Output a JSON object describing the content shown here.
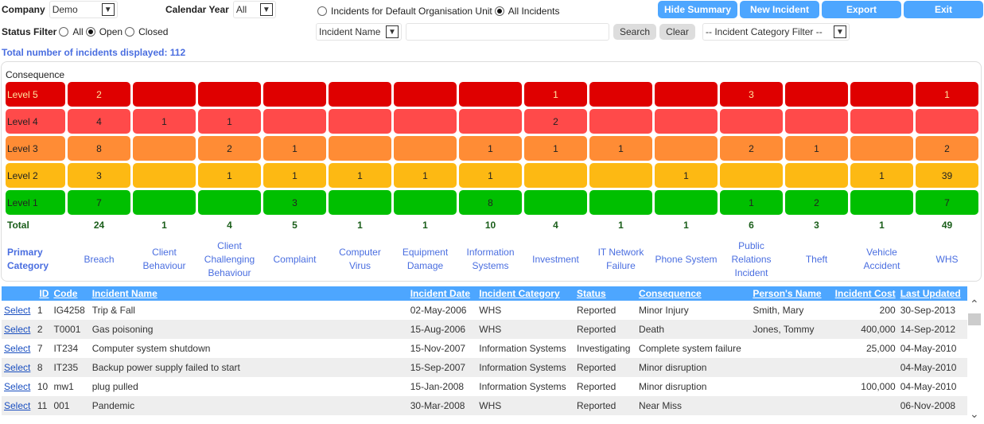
{
  "filters": {
    "company_label": "Company",
    "company_value": "Demo",
    "year_label": "Calendar Year",
    "year_value": "All",
    "status_label": "Status Filter",
    "status_options": [
      "All",
      "Open",
      "Closed"
    ],
    "status_selected": "Open",
    "scope_options": [
      "Incidents for Default Organisation Unit",
      "All Incidents"
    ],
    "scope_selected": "All Incidents",
    "search_field": "Incident Name",
    "search_value": "",
    "search_label": "Search",
    "clear_label": "Clear",
    "category_filter": "-- Incident Category Filter --",
    "total_text": "Total number of incidents displayed: 112"
  },
  "buttons": {
    "hide_summary": "Hide Summary",
    "new_incident": "New Incident",
    "export": "Export",
    "exit": "Exit"
  },
  "matrix": {
    "consequence_label": "Consequence",
    "total_label": "Total",
    "category_label": "Primary Category",
    "categories": [
      "Breach",
      "Client Behaviour",
      "Client Challenging Behaviour",
      "Complaint",
      "Computer Virus",
      "Equipment Damage",
      "Information Systems",
      "Investment",
      "IT Network Failure",
      "Phone System",
      "Public Relations Incident",
      "Theft",
      "Vehicle Accident",
      "WHS"
    ],
    "levels": [
      {
        "label": "Level 5",
        "color": "#df0000",
        "text_color": "#ffe4a0",
        "values": [
          2,
          null,
          null,
          null,
          null,
          null,
          null,
          1,
          null,
          null,
          3,
          null,
          null,
          1
        ]
      },
      {
        "label": "Level 4",
        "color": "#ff4a4a",
        "text_color": "#222",
        "values": [
          4,
          1,
          1,
          null,
          null,
          null,
          null,
          2,
          null,
          null,
          null,
          null,
          null,
          null
        ]
      },
      {
        "label": "Level 3",
        "color": "#ff8c35",
        "text_color": "#222",
        "values": [
          8,
          null,
          2,
          1,
          null,
          null,
          1,
          1,
          1,
          null,
          2,
          1,
          null,
          2
        ]
      },
      {
        "label": "Level 2",
        "color": "#fdb913",
        "text_color": "#222",
        "values": [
          3,
          null,
          1,
          1,
          1,
          1,
          1,
          null,
          null,
          1,
          null,
          null,
          1,
          39
        ]
      },
      {
        "label": "Level 1",
        "color": "#00bf00",
        "text_color": "#222",
        "values": [
          7,
          null,
          null,
          3,
          null,
          null,
          8,
          null,
          null,
          null,
          1,
          2,
          null,
          7
        ]
      }
    ],
    "totals": [
      24,
      1,
      4,
      5,
      1,
      1,
      10,
      4,
      1,
      1,
      6,
      3,
      1,
      49
    ]
  },
  "grid": {
    "select_label": "Select",
    "headers": [
      "",
      "ID",
      "Code",
      "Incident Name",
      "Incident Date",
      "Incident Category",
      "Status",
      "Consequence",
      "Person's Name",
      "Incident Cost",
      "Last Updated"
    ],
    "rows": [
      [
        "1",
        "IG4258",
        "Trip & Fall",
        "02-May-2006",
        "WHS",
        "Reported",
        "Minor Injury",
        "Smith, Mary",
        "200",
        "30-Sep-2013"
      ],
      [
        "2",
        "T0001",
        "Gas poisoning",
        "15-Aug-2006",
        "WHS",
        "Reported",
        "Death",
        "Jones, Tommy",
        "400,000",
        "14-Sep-2012"
      ],
      [
        "7",
        "IT234",
        "Computer system shutdown",
        "15-Nov-2007",
        "Information Systems",
        "Investigating",
        "Complete system failure",
        "",
        "25,000",
        "04-May-2010"
      ],
      [
        "8",
        "IT235",
        "Backup power supply failed to start",
        "15-Sep-2007",
        "Information Systems",
        "Reported",
        "Minor disruption",
        "",
        "",
        "04-May-2010"
      ],
      [
        "10",
        "mw1",
        "plug pulled",
        "15-Jan-2008",
        "Information Systems",
        "Reported",
        "Minor disruption",
        "",
        "100,000",
        "04-May-2010"
      ],
      [
        "11",
        "001",
        "Pandemic",
        "30-Mar-2008",
        "WHS",
        "Reported",
        "Near Miss",
        "",
        "",
        "06-Nov-2008"
      ]
    ]
  }
}
